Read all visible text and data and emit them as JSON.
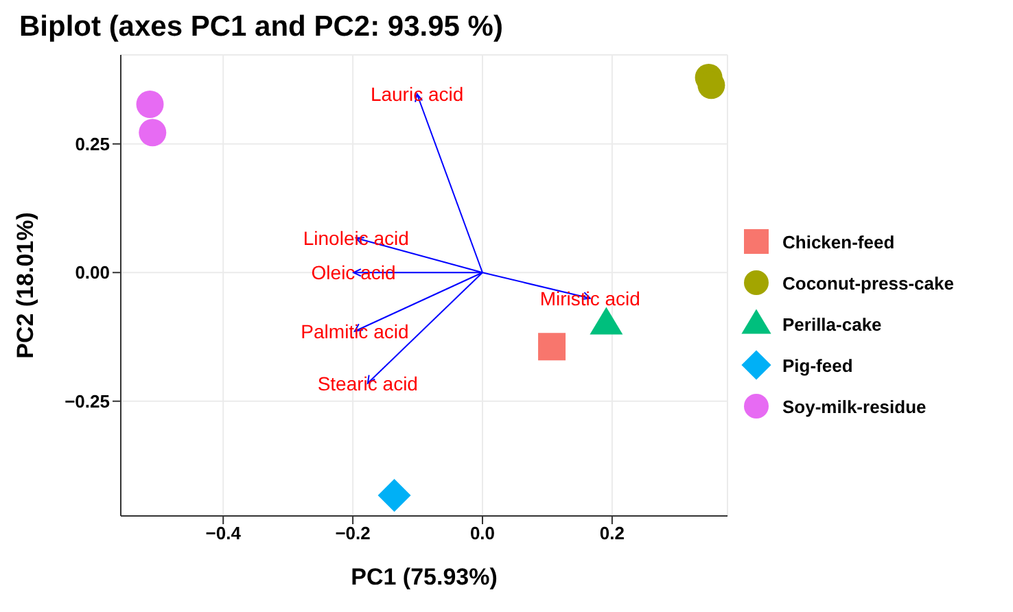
{
  "chart_data": {
    "type": "scatter",
    "title": "Biplot (axes PC1 and PC2: 93.95 %)",
    "xlabel": "PC1 (75.93%)",
    "ylabel": "PC2 (18.01%)",
    "xlim": [
      -0.558,
      0.378
    ],
    "ylim": [
      -0.473,
      0.423
    ],
    "xticks": [
      {
        "value": -0.4,
        "label": "−0.4"
      },
      {
        "value": -0.2,
        "label": "−0.2"
      },
      {
        "value": 0,
        "label": "0.0"
      },
      0.2
    ],
    "yticks": [
      {
        "value": -0.25,
        "label": "−0.25"
      },
      {
        "value": 0,
        "label": "0.00"
      },
      0.25
    ],
    "grid": true,
    "legend": "right",
    "series": [
      {
        "name": "Chicken-feed",
        "color": "#f8766d",
        "marker": "square",
        "x": [
          0.107
        ],
        "values": [
          -0.144
        ]
      },
      {
        "name": "Coconut-press-cake",
        "color": "#a3a500",
        "marker": "circle",
        "x": [
          0.349,
          0.353
        ],
        "values": [
          0.379,
          0.364
        ]
      },
      {
        "name": "Perilla-cake",
        "color": "#00bf7d",
        "marker": "triangle",
        "x": [
          0.191
        ],
        "values": [
          -0.099
        ]
      },
      {
        "name": "Pig-feed",
        "color": "#00b0f6",
        "marker": "diamond",
        "x": [
          -0.136
        ],
        "values": [
          -0.433
        ]
      },
      {
        "name": "Soy-milk-residue",
        "color": "#e76bf3",
        "marker": "circle",
        "x": [
          -0.513,
          -0.509
        ],
        "values": [
          0.327,
          0.272
        ]
      },
      {
        "type": "line",
        "name": "Lauric acid",
        "color": "#0000ff",
        "x": [
          0,
          -0.101
        ],
        "values": [
          0,
          0.347
        ]
      },
      {
        "type": "line",
        "name": "Linoleic acid",
        "color": "#0000ff",
        "x": [
          0,
          -0.195
        ],
        "values": [
          0,
          0.067
        ]
      },
      {
        "type": "line",
        "name": "Oleic acid",
        "color": "#0000ff",
        "x": [
          0,
          -0.199
        ],
        "values": [
          0,
          0.0
        ]
      },
      {
        "type": "line",
        "name": "Palmitic acid",
        "color": "#0000ff",
        "x": [
          0,
          -0.197
        ],
        "values": [
          0,
          -0.114
        ]
      },
      {
        "type": "line",
        "name": "Stearic acid",
        "color": "#0000ff",
        "x": [
          0,
          -0.177
        ],
        "values": [
          0,
          -0.215
        ]
      },
      {
        "type": "line",
        "name": "Miristic acid",
        "color": "#0000ff",
        "x": [
          0,
          0.166
        ],
        "values": [
          0,
          -0.05
        ]
      }
    ]
  }
}
